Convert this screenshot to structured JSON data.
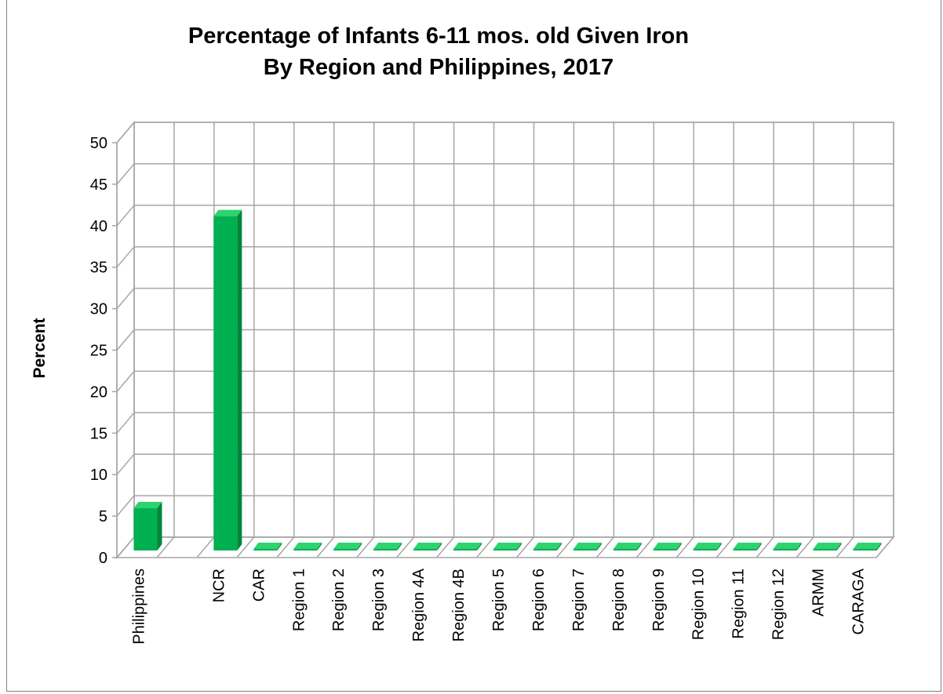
{
  "chart_data": {
    "type": "bar",
    "title": [
      "Percentage of Infants 6-11 mos. old Given Iron",
      "By Region and Philippines, 2017"
    ],
    "ylabel": "Percent",
    "xlabel": "",
    "ylim": [
      0,
      50
    ],
    "yticks": [
      0,
      5,
      10,
      15,
      20,
      25,
      30,
      35,
      40,
      45,
      50
    ],
    "grid": true,
    "style": "3d-column",
    "colors": {
      "bar_front": "#00b050",
      "bar_side": "#00863c",
      "bar_top": "#2ed36e",
      "grid": "#a6a6a6",
      "wall": "#ffffff"
    },
    "categories": [
      "Philippines",
      "",
      "NCR",
      "CAR",
      "Region 1",
      "Region 2",
      "Region 3",
      "Region 4A",
      "Region 4B",
      "Region 5",
      "Region 6",
      "Region 7",
      "Region 8",
      "Region 9",
      "Region 10",
      "Region 11",
      "Region 12",
      "ARMM",
      "CARAGA"
    ],
    "values": [
      5.1,
      null,
      40.3,
      0,
      0,
      0,
      0,
      0,
      0,
      0,
      0,
      0,
      0,
      0,
      0,
      0,
      0,
      0,
      0
    ]
  }
}
